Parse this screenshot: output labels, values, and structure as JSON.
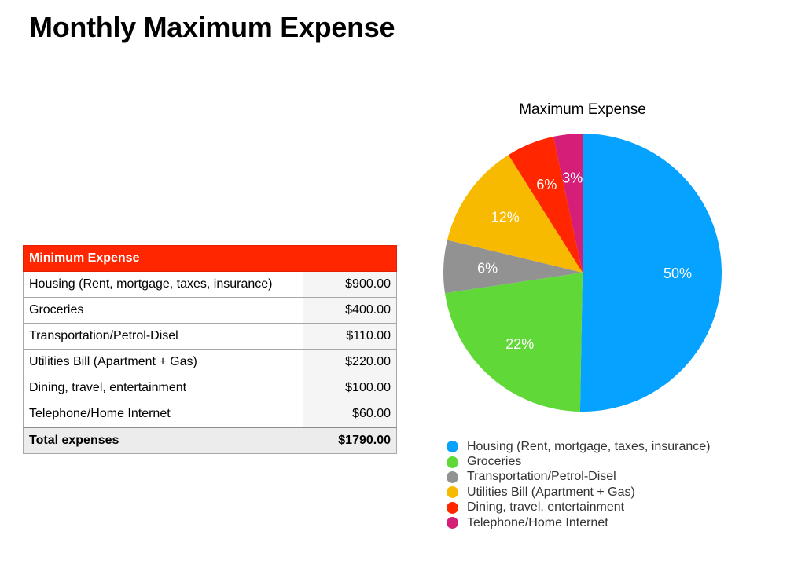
{
  "page_title": "Monthly Maximum Expense",
  "table": {
    "header": "Minimum Expense",
    "rows": [
      {
        "label": "Housing (Rent, mortgage, taxes, insurance)",
        "amount": "$900.00"
      },
      {
        "label": "Groceries",
        "amount": "$400.00"
      },
      {
        "label": "Transportation/Petrol-Disel",
        "amount": "$110.00"
      },
      {
        "label": "Utilities Bill (Apartment + Gas)",
        "amount": "$220.00"
      },
      {
        "label": "Dining, travel, entertainment",
        "amount": "$100.00"
      },
      {
        "label": "Telephone/Home Internet",
        "amount": "$60.00"
      }
    ],
    "total_label": "Total expenses",
    "total_amount": "$1790.00"
  },
  "chart_data": {
    "type": "pie",
    "title": "Maximum Expense",
    "categories": [
      "Housing (Rent, mortgage, taxes, insurance)",
      "Groceries",
      "Transportation/Petrol-Disel",
      "Utilities Bill (Apartment + Gas)",
      "Dining, travel, entertainment",
      "Telephone/Home Internet"
    ],
    "values": [
      900,
      400,
      110,
      220,
      100,
      60
    ],
    "labels": [
      "50%",
      "22%",
      "6%",
      "12%",
      "6%",
      "3%"
    ],
    "colors": [
      "#05a2ff",
      "#60d837",
      "#929292",
      "#f8ba00",
      "#ff2600",
      "#d41e78"
    ],
    "legend_position": "bottom"
  }
}
